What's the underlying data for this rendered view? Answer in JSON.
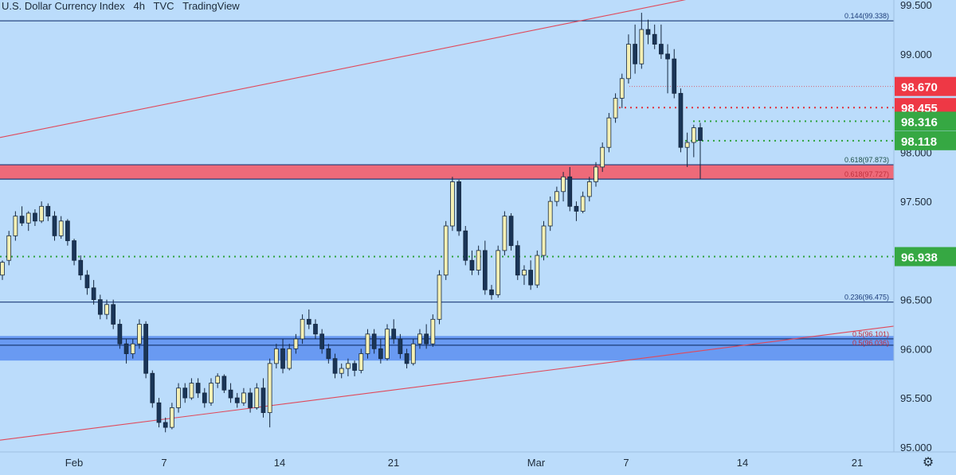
{
  "header": {
    "symbol": "U.S. Dollar Currency Index",
    "interval": "4h",
    "source": "TVC",
    "platform": "TradingView"
  },
  "colors": {
    "background": "#bbdcfb",
    "bull": "#f5f0b4",
    "bear": "#1a3557",
    "resistance_zone": "#f06372",
    "support_zone": "#5a8ef0",
    "trend_line": "#e0495a",
    "fib_line": "#1c3c78",
    "green_label": "#36a843",
    "red_label": "#ee3845"
  },
  "chart_data": {
    "type": "candlestick",
    "y_axis": {
      "min": 94.95,
      "max": 99.55,
      "ticks": [
        "95.000",
        "95.500",
        "96.000",
        "96.500",
        "97.500",
        "98.000",
        "99.000",
        "99.500"
      ]
    },
    "x_axis": {
      "ticks": [
        "Feb",
        "7",
        "14",
        "21",
        "Mar",
        "7",
        "14",
        "21"
      ]
    },
    "fib_levels": [
      {
        "label": "0.144(99.338)",
        "value": 99.338
      },
      {
        "label": "0.618(97.873)",
        "value": 97.873
      },
      {
        "label": "0.618(97.727)",
        "value": 97.727
      },
      {
        "label": "0.236(96.475)",
        "value": 96.475
      },
      {
        "label": "0.5(96.101)",
        "value": 96.101
      },
      {
        "label": "0.5(96.036)",
        "value": 96.036
      }
    ],
    "zones": [
      {
        "name": "resistance",
        "from": 97.727,
        "to": 97.873
      },
      {
        "name": "support",
        "from": 95.88,
        "to": 96.13
      }
    ],
    "price_labels": [
      {
        "text": "98.670",
        "value": 98.67,
        "color": "red"
      },
      {
        "text": "98.455",
        "value": 98.455,
        "color": "red"
      },
      {
        "text": "98.316",
        "value": 98.316,
        "color": "green"
      },
      {
        "text": "98.118",
        "value": 98.118,
        "color": "green"
      },
      {
        "text": "96.938",
        "value": 96.938,
        "color": "green"
      }
    ],
    "trendlines": [
      {
        "name": "upper",
        "p1": [
          0,
          98.15
        ],
        "p2": [
          1122,
          99.98
        ]
      },
      {
        "name": "lower",
        "p1": [
          0,
          95.07
        ],
        "p2": [
          1122,
          96.23
        ]
      }
    ],
    "candles": [
      [
        96.75,
        96.9,
        96.7,
        96.88
      ],
      [
        96.9,
        97.2,
        96.85,
        97.15
      ],
      [
        97.15,
        97.4,
        97.1,
        97.35
      ],
      [
        97.35,
        97.45,
        97.25,
        97.28
      ],
      [
        97.28,
        97.4,
        97.2,
        97.38
      ],
      [
        97.38,
        97.42,
        97.25,
        97.3
      ],
      [
        97.3,
        97.5,
        97.28,
        97.45
      ],
      [
        97.45,
        97.48,
        97.3,
        97.35
      ],
      [
        97.35,
        97.4,
        97.1,
        97.15
      ],
      [
        97.15,
        97.35,
        97.12,
        97.3
      ],
      [
        97.3,
        97.32,
        97.05,
        97.1
      ],
      [
        97.1,
        97.12,
        96.85,
        96.9
      ],
      [
        96.9,
        96.95,
        96.7,
        96.75
      ],
      [
        96.75,
        96.8,
        96.55,
        96.62
      ],
      [
        96.62,
        96.7,
        96.45,
        96.5
      ],
      [
        96.5,
        96.55,
        96.3,
        96.35
      ],
      [
        96.35,
        96.5,
        96.3,
        96.45
      ],
      [
        96.45,
        96.5,
        96.2,
        96.25
      ],
      [
        96.25,
        96.3,
        96.0,
        96.05
      ],
      [
        96.05,
        96.1,
        95.85,
        95.95
      ],
      [
        95.95,
        96.1,
        95.9,
        96.05
      ],
      [
        96.05,
        96.3,
        96.0,
        96.25
      ],
      [
        96.25,
        96.28,
        95.7,
        95.75
      ],
      [
        95.75,
        95.78,
        95.4,
        95.45
      ],
      [
        95.45,
        95.5,
        95.2,
        95.25
      ],
      [
        95.25,
        95.3,
        95.15,
        95.2
      ],
      [
        95.2,
        95.45,
        95.18,
        95.4
      ],
      [
        95.4,
        95.65,
        95.35,
        95.6
      ],
      [
        95.6,
        95.65,
        95.45,
        95.5
      ],
      [
        95.5,
        95.7,
        95.48,
        95.65
      ],
      [
        95.65,
        95.7,
        95.5,
        95.55
      ],
      [
        95.55,
        95.6,
        95.4,
        95.45
      ],
      [
        95.45,
        95.7,
        95.42,
        95.65
      ],
      [
        95.65,
        95.75,
        95.6,
        95.72
      ],
      [
        95.72,
        95.74,
        95.55,
        95.58
      ],
      [
        95.58,
        95.65,
        95.45,
        95.5
      ],
      [
        95.5,
        95.55,
        95.4,
        95.45
      ],
      [
        95.45,
        95.6,
        95.42,
        95.55
      ],
      [
        95.55,
        95.6,
        95.35,
        95.4
      ],
      [
        95.4,
        95.65,
        95.38,
        95.6
      ],
      [
        95.6,
        95.7,
        95.3,
        95.35
      ],
      [
        95.35,
        95.9,
        95.2,
        95.85
      ],
      [
        95.85,
        96.05,
        95.8,
        96.0
      ],
      [
        96.0,
        96.1,
        95.75,
        95.8
      ],
      [
        95.8,
        96.05,
        95.78,
        96.0
      ],
      [
        96.0,
        96.15,
        95.95,
        96.1
      ],
      [
        96.1,
        96.35,
        96.05,
        96.3
      ],
      [
        96.3,
        96.4,
        96.2,
        96.25
      ],
      [
        96.25,
        96.3,
        96.1,
        96.15
      ],
      [
        96.15,
        96.2,
        95.95,
        96.0
      ],
      [
        96.0,
        96.05,
        95.85,
        95.9
      ],
      [
        95.9,
        95.95,
        95.7,
        95.75
      ],
      [
        95.75,
        95.85,
        95.7,
        95.8
      ],
      [
        95.8,
        95.9,
        95.72,
        95.85
      ],
      [
        95.85,
        95.88,
        95.72,
        95.78
      ],
      [
        95.78,
        96.0,
        95.75,
        95.95
      ],
      [
        95.95,
        96.2,
        95.9,
        96.15
      ],
      [
        96.15,
        96.2,
        95.95,
        96.0
      ],
      [
        96.0,
        96.1,
        95.85,
        95.9
      ],
      [
        95.9,
        96.25,
        95.88,
        96.2
      ],
      [
        96.2,
        96.3,
        96.05,
        96.1
      ],
      [
        96.1,
        96.15,
        95.9,
        95.95
      ],
      [
        95.95,
        96.0,
        95.8,
        95.85
      ],
      [
        95.85,
        96.1,
        95.83,
        96.05
      ],
      [
        96.05,
        96.2,
        96.0,
        96.15
      ],
      [
        96.15,
        96.25,
        96.0,
        96.05
      ],
      [
        96.05,
        96.35,
        96.02,
        96.3
      ],
      [
        96.3,
        96.8,
        96.25,
        96.75
      ],
      [
        96.75,
        97.3,
        96.7,
        97.25
      ],
      [
        97.25,
        97.75,
        97.2,
        97.7
      ],
      [
        97.7,
        97.72,
        97.15,
        97.2
      ],
      [
        97.2,
        97.25,
        96.85,
        96.9
      ],
      [
        96.9,
        97.0,
        96.75,
        96.8
      ],
      [
        96.8,
        97.05,
        96.75,
        97.0
      ],
      [
        97.0,
        97.1,
        96.55,
        96.6
      ],
      [
        96.6,
        96.65,
        96.5,
        96.55
      ],
      [
        96.55,
        97.05,
        96.52,
        97.0
      ],
      [
        97.0,
        97.4,
        96.95,
        97.35
      ],
      [
        97.35,
        97.38,
        97.0,
        97.05
      ],
      [
        97.05,
        97.1,
        96.7,
        96.75
      ],
      [
        96.75,
        96.85,
        96.65,
        96.8
      ],
      [
        96.8,
        96.9,
        96.6,
        96.65
      ],
      [
        96.65,
        97.0,
        96.62,
        96.95
      ],
      [
        96.95,
        97.3,
        96.9,
        97.25
      ],
      [
        97.25,
        97.55,
        97.2,
        97.5
      ],
      [
        97.5,
        97.65,
        97.45,
        97.6
      ],
      [
        97.6,
        97.8,
        97.5,
        97.75
      ],
      [
        97.75,
        97.85,
        97.4,
        97.45
      ],
      [
        97.45,
        97.5,
        97.3,
        97.4
      ],
      [
        97.4,
        97.6,
        97.38,
        97.55
      ],
      [
        97.55,
        97.75,
        97.5,
        97.7
      ],
      [
        97.7,
        97.9,
        97.65,
        97.85
      ],
      [
        97.85,
        98.1,
        97.8,
        98.05
      ],
      [
        98.05,
        98.4,
        98.0,
        98.35
      ],
      [
        98.35,
        98.6,
        98.3,
        98.55
      ],
      [
        98.55,
        98.8,
        98.45,
        98.75
      ],
      [
        98.75,
        99.2,
        98.7,
        99.1
      ],
      [
        99.1,
        99.3,
        98.8,
        98.9
      ],
      [
        98.9,
        99.42,
        98.85,
        99.25
      ],
      [
        99.25,
        99.35,
        99.1,
        99.2
      ],
      [
        99.2,
        99.3,
        99.05,
        99.1
      ],
      [
        99.1,
        99.3,
        98.95,
        99.0
      ],
      [
        99.0,
        99.1,
        98.6,
        98.95
      ],
      [
        98.95,
        99.05,
        98.55,
        98.6
      ],
      [
        98.6,
        98.65,
        98.0,
        98.05
      ],
      [
        98.05,
        98.2,
        97.85,
        98.1
      ],
      [
        98.1,
        98.28,
        97.95,
        98.25
      ],
      [
        98.25,
        98.3,
        97.73,
        98.12
      ]
    ]
  }
}
